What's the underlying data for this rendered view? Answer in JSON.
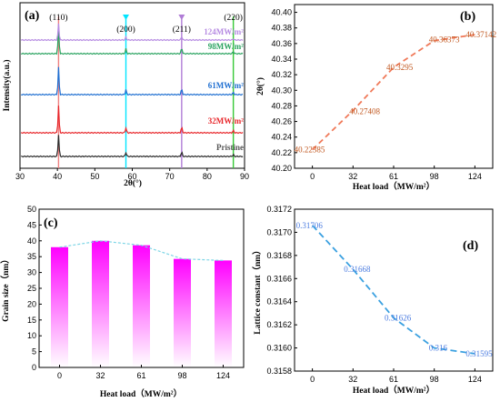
{
  "chart_data": [
    {
      "panel": "(a)",
      "type": "line",
      "xlabel": "2θ(°)",
      "ylabel": "Intensity(a.u.)",
      "xlim": [
        30,
        90
      ],
      "xticks": [
        "30",
        "40",
        "50",
        "60",
        "70",
        "80",
        "90"
      ],
      "peaks": [
        {
          "label": "(110)",
          "x": 40.3,
          "color": "#f08080"
        },
        {
          "label": "(200)",
          "x": 58.3,
          "color": "#00e5ff"
        },
        {
          "label": "(211)",
          "x": 73.2,
          "color": "#b07cd6"
        },
        {
          "label": "(220)",
          "x": 87.0,
          "color": "#37c837"
        }
      ],
      "series": [
        {
          "name": "Pristine",
          "color": "#2b2b2b",
          "label_color": "#555555"
        },
        {
          "name": "32MW/m²",
          "color": "#e8262a",
          "label_color": "#e8262a"
        },
        {
          "name": "61MW/m²",
          "color": "#1f6fd1",
          "label_color": "#1f6fd1"
        },
        {
          "name": "98MW/m²",
          "color": "#2aa360",
          "label_color": "#2aa360"
        },
        {
          "name": "124MW/m²",
          "color": "#b68be2",
          "label_color": "#b68be2"
        }
      ]
    },
    {
      "panel": "(b)",
      "type": "line",
      "xlabel": "Heat load（MW/m²）",
      "ylabel": "2θ(°)",
      "categories": [
        "0",
        "32",
        "61",
        "98",
        "124"
      ],
      "values": [
        40.22385,
        40.27408,
        40.3295,
        40.36373,
        40.37142
      ],
      "value_labels": [
        "40.22385",
        "40.27408",
        "40.3295",
        "40.36373",
        "40.37142"
      ],
      "ylim": [
        40.2,
        40.41
      ],
      "yticks": [
        "40.20",
        "40.22",
        "40.24",
        "40.26",
        "40.28",
        "40.30",
        "40.32",
        "40.34",
        "40.36",
        "40.38",
        "40.40"
      ],
      "line_color": "#f07a5a",
      "label_color": "#c0561e"
    },
    {
      "panel": "(c)",
      "type": "bar",
      "xlabel": "Heat load（MW/m²）",
      "ylabel": "Grain size（nm）",
      "categories": [
        "0",
        "32",
        "61",
        "98",
        "124"
      ],
      "values": [
        38,
        40,
        38.6,
        34.3,
        33.8
      ],
      "ylim": [
        0,
        50
      ],
      "yticks": [
        "0",
        "5",
        "10",
        "15",
        "20",
        "25",
        "30",
        "35",
        "40",
        "45",
        "50"
      ],
      "bar_color": "#ff00ff",
      "line_color": "#7fd6e6"
    },
    {
      "panel": "(d)",
      "type": "line",
      "xlabel": "Heat load（MW/m²）",
      "ylabel": "Lattice constant（nm）",
      "categories": [
        "0",
        "32",
        "61",
        "98",
        "124"
      ],
      "values": [
        0.31706,
        0.31668,
        0.31626,
        0.316,
        0.31595
      ],
      "value_labels": [
        "0.31706",
        "0.31668",
        "0.31626",
        "0.316",
        "0.31595"
      ],
      "ylim": [
        0.3158,
        0.3172
      ],
      "yticks": [
        "0.3158",
        "0.3160",
        "0.3162",
        "0.3164",
        "0.3166",
        "0.3168",
        "0.3170",
        "0.3172"
      ],
      "line_color": "#3aa0e0",
      "label_color": "#4a7be0"
    }
  ]
}
